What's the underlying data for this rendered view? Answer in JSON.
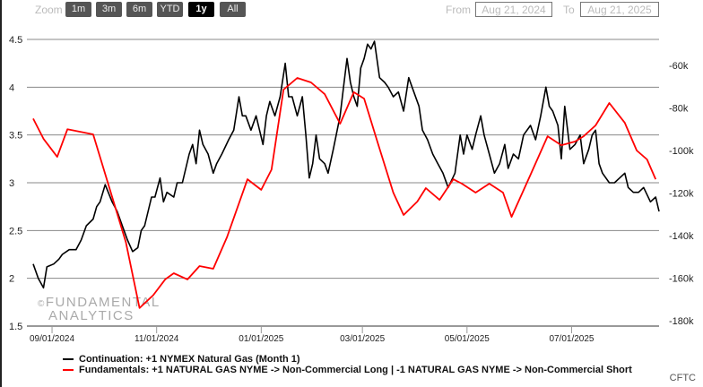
{
  "toolbar": {
    "zoom_label": "Zoom",
    "zoom_buttons": [
      "1m",
      "3m",
      "6m",
      "YTD",
      "1y",
      "All"
    ],
    "active": "1y",
    "from_label": "From",
    "from_value": "Aug 21, 2024",
    "to_label": "To",
    "to_value": "Aug 21, 2025"
  },
  "watermark": {
    "line1": "FUNDAMENTAL",
    "line2": "ANALYTICS",
    "symbol": "©"
  },
  "source": "CFTC",
  "colors": {
    "price": "#000000",
    "fundamentals": "#ff0000",
    "grid": "#888888"
  },
  "chart_data": {
    "type": "line",
    "x_unit": "days since 2024-08-21",
    "xlim": [
      0,
      365
    ],
    "x_ticks": [
      {
        "day": 11,
        "label": "09/01/2024"
      },
      {
        "day": 72,
        "label": "11/01/2024"
      },
      {
        "day": 133,
        "label": "01/01/2025"
      },
      {
        "day": 192,
        "label": "03/01/2025"
      },
      {
        "day": 253,
        "label": "05/01/2025"
      },
      {
        "day": 314,
        "label": "07/01/2025"
      }
    ],
    "left_axis": {
      "ylim": [
        1.5,
        4.5
      ],
      "ticks": [
        "1.5",
        "2",
        "2.5",
        "3",
        "3.5",
        "4",
        "4.5"
      ]
    },
    "right_axis": {
      "ylim": [
        -180,
        -60
      ],
      "ticks": [
        "-180k",
        "-160k",
        "-140k",
        "-120k",
        "-100k",
        "-80k",
        "-60k"
      ]
    },
    "grid": true,
    "legend_placement": "bottom-left",
    "series": [
      {
        "name": "Continuation: +1 NYMEX Natural Gas (Month 1)",
        "axis": "left",
        "color": "#000000",
        "points": [
          [
            0,
            2.15
          ],
          [
            3,
            2.0
          ],
          [
            6,
            1.9
          ],
          [
            8,
            2.12
          ],
          [
            12,
            2.15
          ],
          [
            15,
            2.2
          ],
          [
            17,
            2.25
          ],
          [
            21,
            2.3
          ],
          [
            25,
            2.3
          ],
          [
            28,
            2.4
          ],
          [
            31,
            2.55
          ],
          [
            35,
            2.62
          ],
          [
            37,
            2.75
          ],
          [
            39,
            2.8
          ],
          [
            42,
            2.98
          ],
          [
            46,
            2.8
          ],
          [
            49,
            2.7
          ],
          [
            52,
            2.55
          ],
          [
            55,
            2.4
          ],
          [
            58,
            2.28
          ],
          [
            61,
            2.32
          ],
          [
            63,
            2.5
          ],
          [
            65,
            2.55
          ],
          [
            69,
            2.85
          ],
          [
            71,
            2.85
          ],
          [
            74,
            3.05
          ],
          [
            76,
            2.8
          ],
          [
            78,
            2.9
          ],
          [
            82,
            2.85
          ],
          [
            84,
            3.0
          ],
          [
            87,
            3.0
          ],
          [
            91,
            3.3
          ],
          [
            93,
            3.4
          ],
          [
            95,
            3.2
          ],
          [
            97,
            3.55
          ],
          [
            99,
            3.4
          ],
          [
            102,
            3.3
          ],
          [
            105,
            3.1
          ],
          [
            107,
            3.2
          ],
          [
            110,
            3.3
          ],
          [
            114,
            3.45
          ],
          [
            117,
            3.55
          ],
          [
            120,
            3.9
          ],
          [
            122,
            3.7
          ],
          [
            124,
            3.7
          ],
          [
            127,
            3.55
          ],
          [
            130,
            3.7
          ],
          [
            134,
            3.4
          ],
          [
            136,
            3.7
          ],
          [
            138,
            3.85
          ],
          [
            141,
            3.7
          ],
          [
            144,
            3.9
          ],
          [
            147,
            4.25
          ],
          [
            149,
            3.9
          ],
          [
            151,
            3.9
          ],
          [
            154,
            3.7
          ],
          [
            157,
            3.9
          ],
          [
            159,
            3.5
          ],
          [
            161,
            3.05
          ],
          [
            163,
            3.2
          ],
          [
            165,
            3.5
          ],
          [
            167,
            3.25
          ],
          [
            170,
            3.2
          ],
          [
            172,
            3.1
          ],
          [
            175,
            3.35
          ],
          [
            179,
            3.7
          ],
          [
            181,
            4.0
          ],
          [
            183,
            4.3
          ],
          [
            185,
            4.05
          ],
          [
            187,
            3.9
          ],
          [
            189,
            3.8
          ],
          [
            191,
            4.2
          ],
          [
            193,
            4.3
          ],
          [
            195,
            4.45
          ],
          [
            197,
            4.4
          ],
          [
            199,
            4.48
          ],
          [
            202,
            4.1
          ],
          [
            205,
            4.05
          ],
          [
            207,
            4.0
          ],
          [
            210,
            3.9
          ],
          [
            213,
            3.95
          ],
          [
            216,
            3.75
          ],
          [
            219,
            4.1
          ],
          [
            221,
            4.0
          ],
          [
            225,
            3.8
          ],
          [
            227,
            3.55
          ],
          [
            230,
            3.45
          ],
          [
            233,
            3.3
          ],
          [
            236,
            3.2
          ],
          [
            239,
            3.1
          ],
          [
            242,
            2.95
          ],
          [
            246,
            3.1
          ],
          [
            249,
            3.5
          ],
          [
            251,
            3.3
          ],
          [
            253,
            3.5
          ],
          [
            256,
            3.35
          ],
          [
            258,
            3.5
          ],
          [
            261,
            3.7
          ],
          [
            263,
            3.5
          ],
          [
            266,
            3.3
          ],
          [
            269,
            3.1
          ],
          [
            272,
            3.2
          ],
          [
            275,
            3.4
          ],
          [
            277,
            3.15
          ],
          [
            280,
            3.3
          ],
          [
            283,
            3.25
          ],
          [
            286,
            3.5
          ],
          [
            290,
            3.6
          ],
          [
            293,
            3.45
          ],
          [
            296,
            3.7
          ],
          [
            299,
            4.0
          ],
          [
            301,
            3.8
          ],
          [
            303,
            3.75
          ],
          [
            306,
            3.6
          ],
          [
            308,
            3.25
          ],
          [
            310,
            3.8
          ],
          [
            313,
            3.35
          ],
          [
            316,
            3.4
          ],
          [
            319,
            3.5
          ],
          [
            321,
            3.2
          ],
          [
            324,
            3.35
          ],
          [
            326,
            3.5
          ],
          [
            328,
            3.55
          ],
          [
            330,
            3.2
          ],
          [
            332,
            3.1
          ],
          [
            336,
            3.0
          ],
          [
            339,
            3.0
          ],
          [
            342,
            3.05
          ],
          [
            345,
            3.1
          ],
          [
            347,
            2.95
          ],
          [
            350,
            2.9
          ],
          [
            353,
            2.9
          ],
          [
            356,
            2.95
          ],
          [
            360,
            2.8
          ],
          [
            363,
            2.85
          ],
          [
            365,
            2.7
          ]
        ]
      },
      {
        "name": "Fundamentals: +1 NATURAL GAS NYME -> Non-Commercial Long | -1 NATURAL GAS NYME -> Non-Commercial Short",
        "axis": "right",
        "color": "#ff0000",
        "points": [
          [
            0,
            -85
          ],
          [
            6,
            -94.5
          ],
          [
            14,
            -103
          ],
          [
            20,
            -90
          ],
          [
            35,
            -92.4
          ],
          [
            54,
            -143
          ],
          [
            62,
            -174
          ],
          [
            70,
            -168
          ],
          [
            77,
            -160.6
          ],
          [
            82,
            -157.7
          ],
          [
            90,
            -160.6
          ],
          [
            97,
            -154.3
          ],
          [
            105,
            -155.6
          ],
          [
            113,
            -140.8
          ],
          [
            125,
            -113.5
          ],
          [
            133,
            -118.5
          ],
          [
            139,
            -109
          ],
          [
            146,
            -71.4
          ],
          [
            154,
            -65.9
          ],
          [
            162,
            -68
          ],
          [
            170,
            -73.5
          ],
          [
            179,
            -87.4
          ],
          [
            187,
            -72.6
          ],
          [
            193,
            -75.6
          ],
          [
            201,
            -96.6
          ],
          [
            210,
            -119.8
          ],
          [
            216,
            -130.3
          ],
          [
            224,
            -124
          ],
          [
            229,
            -117.7
          ],
          [
            237,
            -123.2
          ],
          [
            245,
            -113.5
          ],
          [
            250,
            -115.6
          ],
          [
            258,
            -119.8
          ],
          [
            266,
            -115.6
          ],
          [
            274,
            -119.8
          ],
          [
            279,
            -131.2
          ],
          [
            290,
            -111.4
          ],
          [
            300,
            -93.3
          ],
          [
            308,
            -97.5
          ],
          [
            316,
            -95.8
          ],
          [
            321,
            -93.3
          ],
          [
            328,
            -88.2
          ],
          [
            336,
            -77.7
          ],
          [
            345,
            -87
          ],
          [
            352,
            -100
          ],
          [
            358,
            -104.2
          ],
          [
            363,
            -113.5
          ]
        ]
      }
    ]
  }
}
